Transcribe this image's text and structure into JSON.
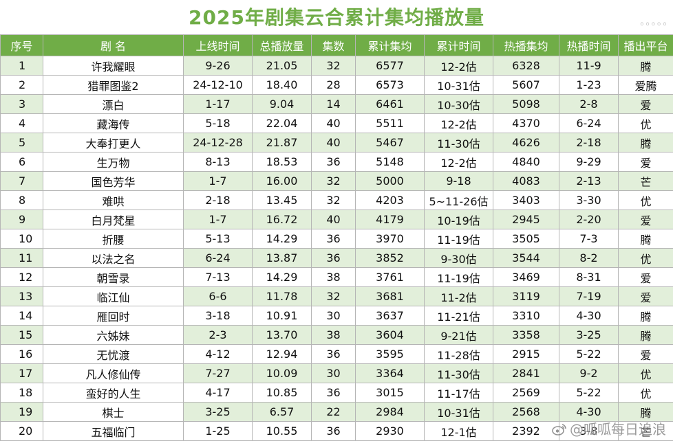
{
  "title": "2025年剧集云合累计集均播放量",
  "headers": [
    "序号",
    "剧 名",
    "上线时间",
    "总播放量",
    "集数",
    "累计集均",
    "累计时间",
    "热播集均",
    "热播时间",
    "播出平台"
  ],
  "rows": [
    [
      "1",
      "许我耀眼",
      "9-26",
      "21.05",
      "32",
      "6577",
      "12-2估",
      "6328",
      "11-9",
      "腾"
    ],
    [
      "2",
      "猎罪图鉴2",
      "24-12-10",
      "18.40",
      "28",
      "6573",
      "10-31估",
      "5607",
      "1-23",
      "爱腾"
    ],
    [
      "3",
      "漂白",
      "1-17",
      "9.04",
      "14",
      "6461",
      "10-30估",
      "5098",
      "2-8",
      "爱"
    ],
    [
      "4",
      "藏海传",
      "5-18",
      "22.04",
      "40",
      "5511",
      "12-2估",
      "4370",
      "6-24",
      "优"
    ],
    [
      "5",
      "大奉打更人",
      "24-12-28",
      "21.87",
      "40",
      "5467",
      "11-30估",
      "4626",
      "2-18",
      "腾"
    ],
    [
      "6",
      "生万物",
      "8-13",
      "18.53",
      "36",
      "5148",
      "12-2估",
      "4840",
      "9-29",
      "爱"
    ],
    [
      "7",
      "国色芳华",
      "1-7",
      "16.00",
      "32",
      "5000",
      "9-18",
      "4083",
      "2-13",
      "芒"
    ],
    [
      "8",
      "难哄",
      "2-18",
      "13.45",
      "32",
      "4203",
      "5~11-26估",
      "3403",
      "3-30",
      "优"
    ],
    [
      "9",
      "白月梵星",
      "1-7",
      "16.72",
      "40",
      "4179",
      "10-19估",
      "2945",
      "2-20",
      "爱"
    ],
    [
      "10",
      "折腰",
      "5-13",
      "14.29",
      "36",
      "3970",
      "11-19估",
      "3505",
      "7-3",
      "腾"
    ],
    [
      "11",
      "以法之名",
      "6-24",
      "13.87",
      "36",
      "3852",
      "9-30估",
      "3544",
      "8-2",
      "优"
    ],
    [
      "12",
      "朝雪录",
      "7-13",
      "14.29",
      "38",
      "3761",
      "11-19估",
      "3469",
      "8-31",
      "爱"
    ],
    [
      "13",
      "临江仙",
      "6-6",
      "11.78",
      "32",
      "3681",
      "11-2估",
      "3119",
      "7-19",
      "爱"
    ],
    [
      "14",
      "雁回时",
      "3-18",
      "10.91",
      "30",
      "3637",
      "11-21估",
      "3310",
      "4-30",
      "腾"
    ],
    [
      "15",
      "六姊妹",
      "2-3",
      "13.70",
      "38",
      "3604",
      "9-21估",
      "3358",
      "3-25",
      "腾"
    ],
    [
      "16",
      "无忧渡",
      "4-12",
      "12.94",
      "36",
      "3595",
      "11-28估",
      "2915",
      "5-22",
      "爱"
    ],
    [
      "17",
      "凡人修仙传",
      "7-27",
      "10.09",
      "30",
      "3364",
      "11-30估",
      "2841",
      "9-2",
      "优"
    ],
    [
      "18",
      "蛮好的人生",
      "4-17",
      "10.85",
      "36",
      "3015",
      "11-17估",
      "2569",
      "5-22",
      "优"
    ],
    [
      "19",
      "棋士",
      "3-25",
      "6.57",
      "22",
      "2984",
      "10-31估",
      "2568",
      "4-30",
      "腾"
    ],
    [
      "20",
      "五福临门",
      "1-25",
      "10.55",
      "36",
      "2930",
      "12-1估",
      "2392",
      "3-8",
      "芒"
    ]
  ],
  "watermark": "@呱呱每日追浪",
  "icons": {
    "watermark_logo": "weibo-logo-icon"
  }
}
